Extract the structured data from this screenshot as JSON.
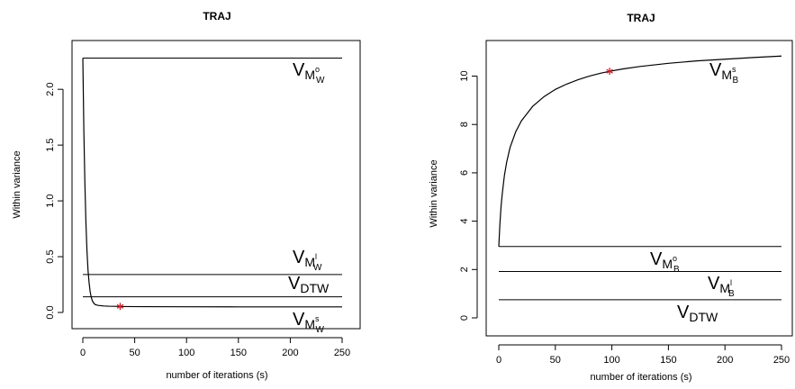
{
  "chart_data": [
    {
      "type": "line",
      "title": "TRAJ",
      "xlabel": "number of iterations (s)",
      "ylabel": "Within variance",
      "xlim": [
        0,
        250
      ],
      "ylim": [
        0,
        2.3
      ],
      "xticks": [
        "0",
        "50",
        "100",
        "150",
        "200",
        "250"
      ],
      "yticks": [
        "0.0",
        "0.5",
        "1.0",
        "1.5",
        "2.0"
      ],
      "hlines": [
        {
          "label_base": "V",
          "label_main": "M",
          "label_sup": "o",
          "label_sub": "W",
          "y": 2.28
        },
        {
          "label_base": "V",
          "label_main": "M",
          "label_sup": "l",
          "label_sub": "W",
          "y": 0.34
        },
        {
          "label_base": "V",
          "label_main": "DTW",
          "label_sup": "",
          "label_sub": "",
          "y": 0.14
        }
      ],
      "series": [
        {
          "label_base": "V",
          "label_main": "M",
          "label_sup": "s",
          "label_sub": "W",
          "x": [
            0,
            1,
            2,
            3,
            4,
            5,
            6,
            7,
            8,
            9,
            10,
            12,
            15,
            20,
            25,
            30,
            36,
            40,
            60,
            100,
            150,
            200,
            250
          ],
          "y": [
            2.28,
            1.62,
            1.15,
            0.8,
            0.55,
            0.38,
            0.27,
            0.19,
            0.14,
            0.11,
            0.09,
            0.07,
            0.063,
            0.058,
            0.056,
            0.055,
            0.054,
            0.053,
            0.052,
            0.051,
            0.05,
            0.05,
            0.05
          ]
        }
      ],
      "marker": {
        "x": 36,
        "y": 0.054,
        "color": "#d0202a",
        "symbol": "*"
      }
    },
    {
      "type": "line",
      "title": "TRAJ",
      "xlabel": "number of iterations (s)",
      "ylabel": "Within variance",
      "xlim": [
        0,
        250
      ],
      "ylim": [
        0,
        11.1
      ],
      "xticks": [
        "0",
        "50",
        "100",
        "150",
        "200",
        "250"
      ],
      "yticks": [
        "0",
        "2",
        "4",
        "6",
        "8",
        "10"
      ],
      "hlines": [
        {
          "label_base": "V",
          "label_main": "M",
          "label_sup": "o",
          "label_sub": "B",
          "y": 2.95
        },
        {
          "label_base": "V",
          "label_main": "M",
          "label_sup": "l",
          "label_sub": "B",
          "y": 1.92
        },
        {
          "label_base": "V",
          "label_main": "DTW",
          "label_sup": "",
          "label_sub": "",
          "y": 0.75
        }
      ],
      "series": [
        {
          "label_base": "V",
          "label_main": "M",
          "label_sup": "s",
          "label_sub": "B",
          "x": [
            0,
            1,
            2,
            3,
            5,
            7,
            10,
            15,
            20,
            30,
            40,
            50,
            60,
            70,
            80,
            90,
            98,
            110,
            125,
            150,
            175,
            200,
            225,
            250
          ],
          "y": [
            2.95,
            3.9,
            4.6,
            5.1,
            5.9,
            6.45,
            7.05,
            7.7,
            8.15,
            8.75,
            9.15,
            9.45,
            9.67,
            9.85,
            10.0,
            10.12,
            10.2,
            10.3,
            10.4,
            10.53,
            10.63,
            10.7,
            10.77,
            10.83
          ]
        }
      ],
      "marker": {
        "x": 98,
        "y": 10.2,
        "color": "#d0202a",
        "symbol": "*"
      }
    }
  ]
}
